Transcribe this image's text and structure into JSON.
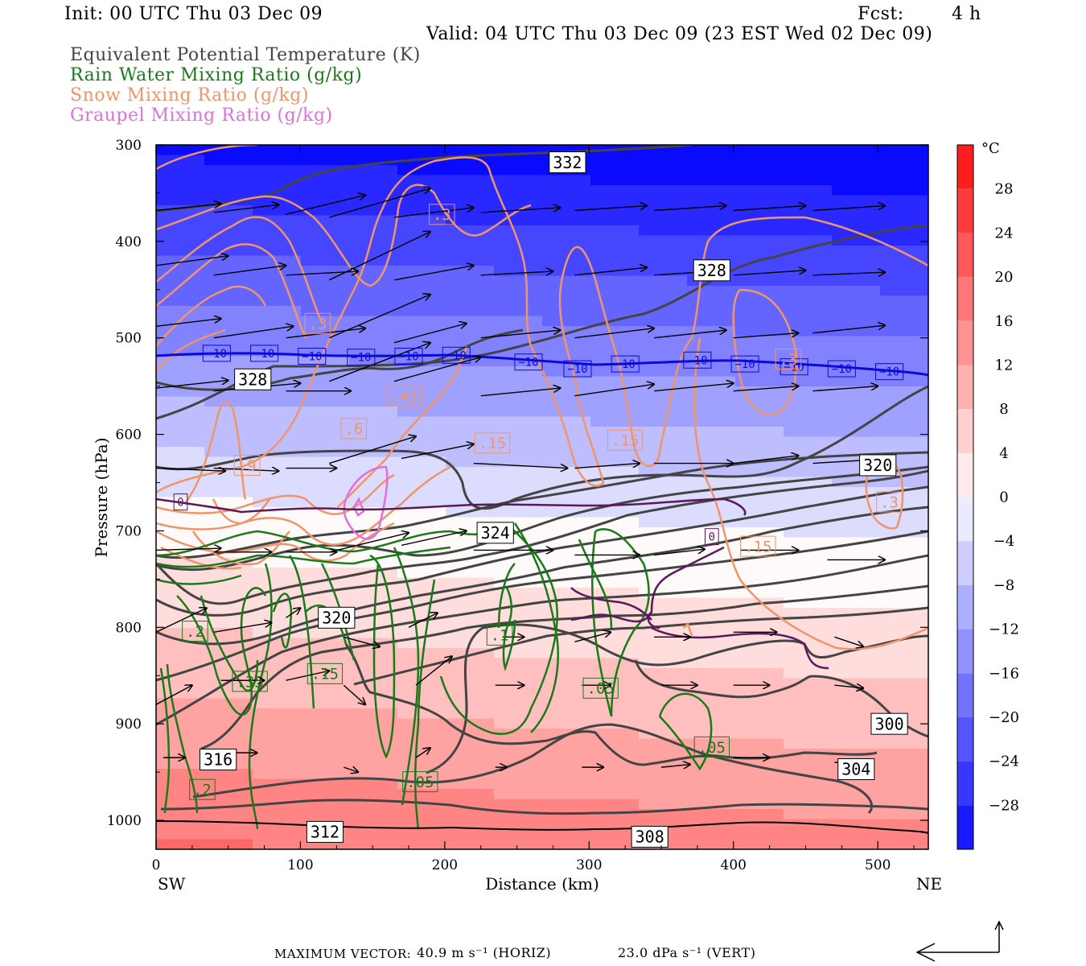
{
  "header": {
    "init": "Init: 00 UTC Thu 03 Dec 09",
    "fcst_label": "Fcst:",
    "fcst_value": "4 h",
    "valid": "Valid: 04 UTC Thu 03 Dec 09 (23 EST Wed 02 Dec 09)"
  },
  "legend": [
    {
      "name": "Equivalent Potential Temperature (K)",
      "color": "#444444"
    },
    {
      "name": "Rain Water Mixing Ratio (g/kg)",
      "color": "#1a7a1a"
    },
    {
      "name": "Snow Mixing Ratio (g/kg)",
      "color": "#f0956a"
    },
    {
      "name": "Graupel Mixing Ratio (g/kg)",
      "color": "#e070e0"
    }
  ],
  "footer": {
    "max_vector_label": "MAXIMUM VECTOR:",
    "horiz": "40.9 m s⁻¹ (HORIZ)",
    "vert": "23.0 dPa s⁻¹ (VERT)"
  },
  "chart_data": {
    "type": "cross-section",
    "xlabel": "Distance (km)",
    "ylabel": "Pressure (hPa)",
    "xlim": [
      0,
      535
    ],
    "ylim": [
      1030,
      300
    ],
    "x_ticks": [
      0,
      100,
      200,
      300,
      400,
      500
    ],
    "y_ticks": [
      300,
      400,
      500,
      600,
      700,
      800,
      900,
      1000
    ],
    "left_end_label": "SW",
    "right_end_label": "NE",
    "colorbar": {
      "unit": "°C",
      "labels": [
        28,
        24,
        20,
        16,
        12,
        8,
        4,
        0,
        -4,
        -8,
        -12,
        -16,
        -20,
        -24,
        -28
      ],
      "range": [
        -32,
        32
      ]
    },
    "theta_e_labels": [
      {
        "text": "332",
        "x": 285,
        "p": 318
      },
      {
        "text": "328",
        "x": 385,
        "p": 430
      },
      {
        "text": "328",
        "x": 67,
        "p": 543
      },
      {
        "text": "320",
        "x": 500,
        "p": 632
      },
      {
        "text": "324",
        "x": 235,
        "p": 702
      },
      {
        "text": "320",
        "x": 125,
        "p": 790
      },
      {
        "text": "316",
        "x": 43,
        "p": 937
      },
      {
        "text": "312",
        "x": 117,
        "p": 1012
      },
      {
        "text": "308",
        "x": 342,
        "p": 1017
      },
      {
        "text": "304",
        "x": 485,
        "p": 947
      },
      {
        "text": "300",
        "x": 508,
        "p": 900
      }
    ],
    "temp_neg10_labels": [
      {
        "text": "−10",
        "x": 42,
        "p": 516
      },
      {
        "text": "−10",
        "x": 75,
        "p": 516
      },
      {
        "text": "−10",
        "x": 108,
        "p": 519
      },
      {
        "text": "−10",
        "x": 142,
        "p": 520
      },
      {
        "text": "−10",
        "x": 175,
        "p": 519
      },
      {
        "text": "−10",
        "x": 208,
        "p": 518
      },
      {
        "text": "−10",
        "x": 258,
        "p": 525
      },
      {
        "text": "−10",
        "x": 292,
        "p": 532
      },
      {
        "text": "−10",
        "x": 325,
        "p": 527
      },
      {
        "text": "−10",
        "x": 375,
        "p": 523
      },
      {
        "text": "−10",
        "x": 408,
        "p": 527
      },
      {
        "text": "−10",
        "x": 442,
        "p": 530
      },
      {
        "text": "−10",
        "x": 475,
        "p": 532
      },
      {
        "text": "−10",
        "x": 508,
        "p": 535
      }
    ],
    "temp_0_labels": [
      {
        "text": "0",
        "x": 17,
        "p": 670
      },
      {
        "text": "0",
        "x": 385,
        "p": 706
      }
    ],
    "snow_labels": [
      {
        "text": ".3",
        "x": 198,
        "p": 372
      },
      {
        "text": ".3",
        "x": 112,
        "p": 485
      },
      {
        "text": ".45",
        "x": 172,
        "p": 560
      },
      {
        "text": ".6",
        "x": 137,
        "p": 594
      },
      {
        "text": ".15",
        "x": 233,
        "p": 609
      },
      {
        "text": ".15",
        "x": 325,
        "p": 606
      },
      {
        "text": ".9",
        "x": 63,
        "p": 632
      },
      {
        "text": ".3",
        "x": 508,
        "p": 670
      },
      {
        "text": ".15",
        "x": 417,
        "p": 716
      },
      {
        "text": ".3",
        "x": 438,
        "p": 522
      }
    ],
    "rain_labels": [
      {
        "text": ".2",
        "x": 27,
        "p": 804
      },
      {
        "text": ".35",
        "x": 65,
        "p": 856
      },
      {
        "text": ".15",
        "x": 117,
        "p": 848
      },
      {
        "text": ".1",
        "x": 238,
        "p": 808
      },
      {
        "text": ".05",
        "x": 308,
        "p": 863
      },
      {
        "text": ".05",
        "x": 385,
        "p": 924
      },
      {
        "text": ".05",
        "x": 183,
        "p": 960
      },
      {
        "text": ".2",
        "x": 32,
        "p": 968
      }
    ],
    "vectors": [
      {
        "x": 0,
        "p": 368,
        "dx": 45,
        "dp": -7
      },
      {
        "x": 0,
        "p": 425,
        "dx": 50,
        "dp": -10
      },
      {
        "x": 0,
        "p": 488,
        "dx": 45,
        "dp": -8
      },
      {
        "x": 0,
        "p": 552,
        "dx": 50,
        "dp": -8
      },
      {
        "x": 0,
        "p": 635,
        "dx": 48,
        "dp": 3
      },
      {
        "x": 0,
        "p": 720,
        "dx": 45,
        "dp": -2
      },
      {
        "x": 0,
        "p": 805,
        "dx": 35,
        "dp": -25
      },
      {
        "x": 0,
        "p": 880,
        "dx": 25,
        "dp": -20
      },
      {
        "x": 5,
        "p": 935,
        "dx": 15,
        "dp": 0
      },
      {
        "x": 40,
        "p": 370,
        "dx": 45,
        "dp": -8
      },
      {
        "x": 40,
        "p": 435,
        "dx": 50,
        "dp": -10
      },
      {
        "x": 40,
        "p": 500,
        "dx": 55,
        "dp": -12
      },
      {
        "x": 40,
        "p": 555,
        "dx": 60,
        "dp": -8
      },
      {
        "x": 40,
        "p": 635,
        "dx": 45,
        "dp": 3
      },
      {
        "x": 40,
        "p": 722,
        "dx": 40,
        "dp": 0
      },
      {
        "x": 40,
        "p": 805,
        "dx": 40,
        "dp": -10
      },
      {
        "x": 45,
        "p": 855,
        "dx": 30,
        "dp": 0
      },
      {
        "x": 50,
        "p": 930,
        "dx": 20,
        "dp": 0
      },
      {
        "x": 90,
        "p": 372,
        "dx": 55,
        "dp": -20
      },
      {
        "x": 90,
        "p": 435,
        "dx": 50,
        "dp": -4
      },
      {
        "x": 90,
        "p": 500,
        "dx": 55,
        "dp": -10
      },
      {
        "x": 90,
        "p": 555,
        "dx": 45,
        "dp": 0
      },
      {
        "x": 90,
        "p": 635,
        "dx": 35,
        "dp": 0
      },
      {
        "x": 90,
        "p": 722,
        "dx": 35,
        "dp": 0
      },
      {
        "x": 90,
        "p": 790,
        "dx": 10,
        "dp": -10
      },
      {
        "x": 90,
        "p": 855,
        "dx": 30,
        "dp": -10
      },
      {
        "x": 120,
        "p": 375,
        "dx": 70,
        "dp": -30
      },
      {
        "x": 120,
        "p": 440,
        "dx": 70,
        "dp": -50
      },
      {
        "x": 120,
        "p": 500,
        "dx": 70,
        "dp": -45
      },
      {
        "x": 120,
        "p": 545,
        "dx": 70,
        "dp": -40
      },
      {
        "x": 120,
        "p": 630,
        "dx": 60,
        "dp": -28
      },
      {
        "x": 120,
        "p": 722,
        "dx": 55,
        "dp": -20
      },
      {
        "x": 130,
        "p": 810,
        "dx": 25,
        "dp": 10
      },
      {
        "x": 130,
        "p": 860,
        "dx": 15,
        "dp": 20
      },
      {
        "x": 130,
        "p": 945,
        "dx": 10,
        "dp": 5
      },
      {
        "x": 165,
        "p": 375,
        "dx": 55,
        "dp": -10
      },
      {
        "x": 165,
        "p": 440,
        "dx": 55,
        "dp": -15
      },
      {
        "x": 165,
        "p": 505,
        "dx": 50,
        "dp": -20
      },
      {
        "x": 165,
        "p": 545,
        "dx": 60,
        "dp": -25
      },
      {
        "x": 170,
        "p": 625,
        "dx": 50,
        "dp": -15
      },
      {
        "x": 170,
        "p": 715,
        "dx": 45,
        "dp": -15
      },
      {
        "x": 175,
        "p": 800,
        "dx": 20,
        "dp": -15
      },
      {
        "x": 180,
        "p": 860,
        "dx": 25,
        "dp": -30
      },
      {
        "x": 180,
        "p": 935,
        "dx": 10,
        "dp": -10
      },
      {
        "x": 225,
        "p": 370,
        "dx": 55,
        "dp": -5
      },
      {
        "x": 225,
        "p": 435,
        "dx": 50,
        "dp": -4
      },
      {
        "x": 225,
        "p": 500,
        "dx": 55,
        "dp": -8
      },
      {
        "x": 225,
        "p": 560,
        "dx": 55,
        "dp": -8
      },
      {
        "x": 220,
        "p": 630,
        "dx": 65,
        "dp": 5
      },
      {
        "x": 220,
        "p": 720,
        "dx": 55,
        "dp": 0
      },
      {
        "x": 240,
        "p": 810,
        "dx": 15,
        "dp": 0
      },
      {
        "x": 235,
        "p": 860,
        "dx": 20,
        "dp": 0
      },
      {
        "x": 235,
        "p": 945,
        "dx": 8,
        "dp": 0
      },
      {
        "x": 290,
        "p": 368,
        "dx": 50,
        "dp": -5
      },
      {
        "x": 290,
        "p": 435,
        "dx": 50,
        "dp": -8
      },
      {
        "x": 290,
        "p": 500,
        "dx": 55,
        "dp": -10
      },
      {
        "x": 290,
        "p": 560,
        "dx": 55,
        "dp": -12
      },
      {
        "x": 290,
        "p": 635,
        "dx": 45,
        "dp": -5
      },
      {
        "x": 290,
        "p": 725,
        "dx": 45,
        "dp": 0
      },
      {
        "x": 290,
        "p": 815,
        "dx": 25,
        "dp": -10
      },
      {
        "x": 295,
        "p": 860,
        "dx": 20,
        "dp": 0
      },
      {
        "x": 295,
        "p": 945,
        "dx": 15,
        "dp": 0
      },
      {
        "x": 345,
        "p": 368,
        "dx": 50,
        "dp": -5
      },
      {
        "x": 345,
        "p": 435,
        "dx": 50,
        "dp": -5
      },
      {
        "x": 345,
        "p": 500,
        "dx": 50,
        "dp": -8
      },
      {
        "x": 345,
        "p": 555,
        "dx": 55,
        "dp": -8
      },
      {
        "x": 345,
        "p": 630,
        "dx": 55,
        "dp": 0
      },
      {
        "x": 345,
        "p": 725,
        "dx": 35,
        "dp": -6
      },
      {
        "x": 345,
        "p": 810,
        "dx": 25,
        "dp": 0
      },
      {
        "x": 350,
        "p": 860,
        "dx": 25,
        "dp": 0
      },
      {
        "x": 350,
        "p": 945,
        "dx": 20,
        "dp": -3
      },
      {
        "x": 400,
        "p": 368,
        "dx": 50,
        "dp": -5
      },
      {
        "x": 400,
        "p": 435,
        "dx": 50,
        "dp": -5
      },
      {
        "x": 400,
        "p": 500,
        "dx": 45,
        "dp": -5
      },
      {
        "x": 400,
        "p": 555,
        "dx": 45,
        "dp": -5
      },
      {
        "x": 400,
        "p": 630,
        "dx": 45,
        "dp": -8
      },
      {
        "x": 405,
        "p": 720,
        "dx": 40,
        "dp": 0
      },
      {
        "x": 400,
        "p": 805,
        "dx": 30,
        "dp": 0
      },
      {
        "x": 400,
        "p": 860,
        "dx": 25,
        "dp": 0
      },
      {
        "x": 400,
        "p": 935,
        "dx": 25,
        "dp": 0
      },
      {
        "x": 455,
        "p": 368,
        "dx": 50,
        "dp": -5
      },
      {
        "x": 455,
        "p": 435,
        "dx": 50,
        "dp": -3
      },
      {
        "x": 455,
        "p": 495,
        "dx": 50,
        "dp": -8
      },
      {
        "x": 455,
        "p": 555,
        "dx": 45,
        "dp": -5
      },
      {
        "x": 455,
        "p": 630,
        "dx": 45,
        "dp": -4
      },
      {
        "x": 465,
        "p": 730,
        "dx": 40,
        "dp": 0
      },
      {
        "x": 470,
        "p": 810,
        "dx": 20,
        "dp": 10
      },
      {
        "x": 470,
        "p": 860,
        "dx": 20,
        "dp": 3
      },
      {
        "x": 470,
        "p": 940,
        "dx": 20,
        "dp": 0
      }
    ]
  }
}
